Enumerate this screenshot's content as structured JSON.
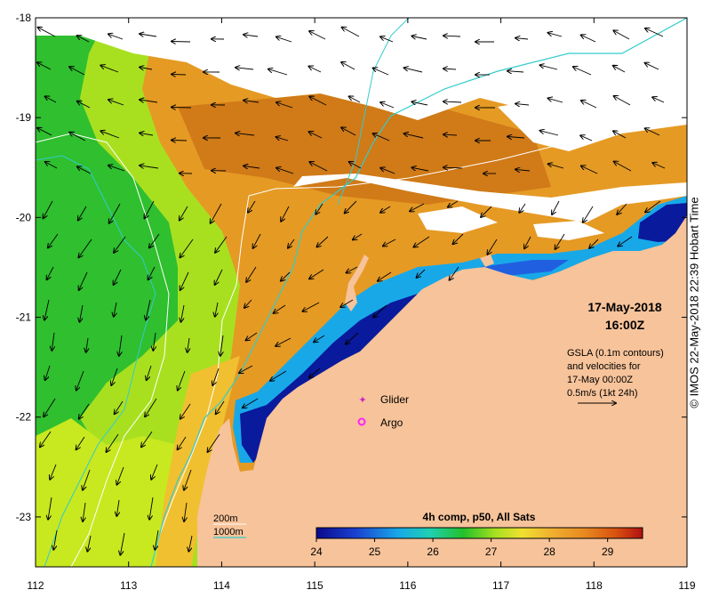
{
  "map": {
    "x_axis": {
      "ticks": [
        "112",
        "113",
        "114",
        "115",
        "116",
        "117",
        "118",
        "119"
      ]
    },
    "y_axis": {
      "ticks": [
        "-18",
        "-19",
        "-20",
        "-21",
        "-22",
        "-23"
      ]
    },
    "lon_range": [
      112,
      119
    ],
    "lat_range": [
      -23.5,
      -18
    ]
  },
  "overlay": {
    "date": "17-May-2018",
    "time": "16:00Z",
    "gsla_lines": [
      "GSLA (0.1m contours)",
      "and velocities for",
      "17-May 00:00Z",
      "0.5m/s (1kt 24h)"
    ]
  },
  "legend": {
    "glider": "Glider",
    "argo": "Argo",
    "isobath_200": "200m",
    "isobath_1000": "1000m",
    "glider_color": "#cc22cc",
    "argo_color": "#ff22ff",
    "isobath_200_color": "#ffffff",
    "isobath_1000_color": "#33cccc"
  },
  "colorbar": {
    "title": "4h comp, p50, All Sats",
    "ticks": [
      "24",
      "25",
      "26",
      "27",
      "28",
      "29"
    ],
    "min": 24,
    "max": 29.6
  },
  "copyright": "© IMOS 22-May-2018 22:39 Hobart Time",
  "colors": {
    "land": "#f7c39a",
    "cloud": "#ffffff",
    "warm": "#e59a24",
    "mid": "#2fbf2f",
    "cold": "#1020a0"
  }
}
